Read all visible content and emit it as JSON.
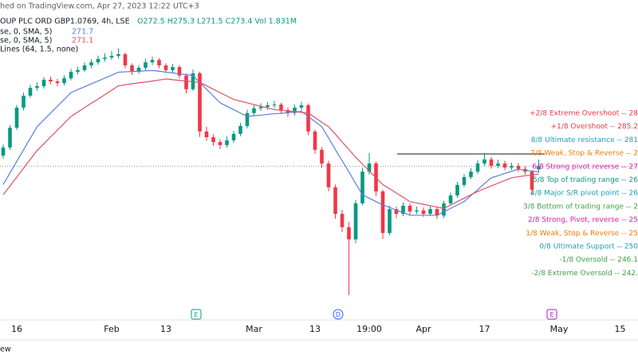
{
  "header": {
    "published": "hed on TradingView.com, Apr 27, 2023 12:22 UTC+3",
    "symbol": "OUP PLC ORD GBP1.0769, 4h, LSE",
    "ohlc": "O272.5 H275.3 L271.5 C273.4 Vol 1.831M",
    "indicators": [
      {
        "name": "se, 0, SMA, 5)",
        "value": "271.7",
        "color": "#5b7fe0"
      },
      {
        "name": "se, 0, SMA, 5)",
        "value": "271.1",
        "color": "#e0506a"
      },
      {
        "name": "Lines (64, 1.5, none)"
      }
    ]
  },
  "chart_data": {
    "type": "candlestick",
    "categories": [
      null,
      null,
      "16",
      null,
      null,
      null,
      null,
      null,
      null,
      null,
      null,
      null,
      null,
      null,
      null,
      null,
      "Feb",
      null,
      null,
      null,
      null,
      null,
      null,
      null,
      "13",
      null,
      null,
      null,
      null,
      null,
      null,
      null,
      null,
      null,
      null,
      null,
      null,
      "Mar",
      null,
      null,
      null,
      null,
      null,
      null,
      null,
      null,
      "13",
      null,
      null,
      null,
      null,
      null,
      null,
      null,
      "19:00",
      null,
      null,
      null,
      null,
      null,
      null,
      null,
      "Apr",
      null,
      null,
      null,
      null,
      null,
      null,
      null,
      null,
      "17",
      null,
      null,
      null,
      null,
      null,
      null,
      null,
      null,
      null,
      null,
      "May",
      null,
      null,
      null,
      null,
      null,
      null,
      null,
      null,
      "15",
      null
    ],
    "open": [
      276.5,
      278.9,
      284.7,
      290.6,
      294.1,
      296.4,
      296.9,
      298.8,
      298.3,
      297.8,
      299.2,
      301.1,
      301.6,
      303.0,
      303.9,
      304.9,
      305.3,
      305.8,
      306.3,
      303.0,
      301.1,
      302.3,
      303.9,
      304.6,
      303.0,
      301.6,
      302.5,
      300.0,
      296.0,
      300.7,
      283.6,
      281.9,
      280.5,
      279.6,
      281.0,
      282.9,
      285.2,
      289.0,
      290.4,
      290.8,
      291.3,
      291.5,
      289.9,
      289.0,
      290.6,
      291.3,
      283.6,
      278.2,
      274.2,
      267.2,
      259.4,
      255.5,
      251.9,
      262.5,
      271.8,
      274.2,
      266.0,
      253.8,
      260.8,
      259.4,
      261.8,
      260.1,
      260.4,
      259.4,
      260.8,
      258.9,
      262.5,
      264.8,
      267.9,
      270.2,
      271.8,
      274.2,
      275.4,
      273.5,
      274.2,
      273.0,
      273.5,
      272.6,
      271.8,
      272.5,
      null,
      null,
      null,
      null,
      null,
      null,
      null,
      null,
      null,
      null,
      null,
      null,
      null
    ],
    "high": [
      279.8,
      285.5,
      291.4,
      295.0,
      297.3,
      298.0,
      299.6,
      299.7,
      299.0,
      300.1,
      302.0,
      302.6,
      303.9,
      304.8,
      305.9,
      306.5,
      307.2,
      308.0,
      306.8,
      303.6,
      303.1,
      304.9,
      305.6,
      305.2,
      303.6,
      303.4,
      303.1,
      300.6,
      301.8,
      301.2,
      285.0,
      282.8,
      281.3,
      282.1,
      283.8,
      286.1,
      290.0,
      291.3,
      291.9,
      292.2,
      292.6,
      292.0,
      290.7,
      291.5,
      292.3,
      291.8,
      284.2,
      279.0,
      275.0,
      268.0,
      260.6,
      257.0,
      263.5,
      273.0,
      277.3,
      274.8,
      266.5,
      261.8,
      261.6,
      262.8,
      262.5,
      261.6,
      261.3,
      261.7,
      261.4,
      263.3,
      265.7,
      268.8,
      271.1,
      272.8,
      275.2,
      277.3,
      276.1,
      275.3,
      275.0,
      274.4,
      274.3,
      273.4,
      272.3,
      275.3,
      null,
      null,
      null,
      null,
      null,
      null,
      null,
      null,
      null,
      null,
      null,
      null,
      null
    ],
    "low": [
      275.6,
      278.2,
      284.0,
      289.8,
      293.5,
      295.6,
      296.2,
      297.5,
      296.9,
      297.1,
      298.6,
      300.4,
      301.0,
      302.2,
      303.2,
      304.1,
      304.6,
      305.0,
      302.1,
      300.2,
      300.5,
      301.6,
      303.1,
      302.2,
      300.8,
      300.9,
      299.1,
      294.8,
      295.5,
      282.0,
      280.8,
      279.4,
      278.4,
      278.9,
      280.3,
      282.2,
      284.5,
      288.2,
      289.6,
      290.0,
      290.5,
      289.0,
      287.9,
      288.3,
      289.8,
      282.5,
      277.0,
      272.9,
      266.0,
      258.0,
      254.1,
      235.6,
      250.8,
      261.9,
      270.9,
      264.6,
      252.0,
      253.1,
      258.1,
      258.7,
      259.2,
      259.4,
      258.5,
      258.8,
      257.9,
      258.2,
      261.9,
      264.1,
      267.2,
      269.6,
      271.1,
      273.5,
      272.7,
      272.8,
      272.2,
      272.3,
      271.7,
      270.9,
      264.8,
      271.5,
      null,
      null,
      null,
      null,
      null,
      null,
      null,
      null,
      null,
      null,
      null,
      null,
      null
    ],
    "close": [
      278.9,
      284.7,
      290.6,
      294.1,
      296.4,
      296.9,
      298.8,
      298.3,
      297.8,
      299.2,
      301.1,
      301.6,
      303.0,
      303.9,
      304.9,
      305.3,
      305.8,
      306.3,
      303.0,
      301.1,
      302.3,
      303.9,
      304.6,
      303.0,
      301.6,
      302.5,
      300.0,
      296.0,
      300.7,
      283.6,
      281.9,
      280.5,
      279.6,
      281.0,
      282.9,
      285.2,
      289.0,
      290.4,
      290.8,
      291.3,
      291.5,
      289.9,
      289.0,
      290.6,
      291.3,
      283.6,
      278.2,
      274.2,
      267.2,
      259.4,
      255.5,
      251.9,
      262.5,
      271.8,
      274.2,
      266.0,
      253.8,
      260.8,
      259.4,
      261.8,
      260.1,
      260.4,
      259.4,
      260.8,
      258.9,
      262.5,
      264.8,
      267.9,
      270.2,
      271.8,
      274.2,
      275.4,
      273.5,
      274.2,
      273.0,
      273.5,
      272.6,
      271.8,
      266.5,
      273.4,
      null,
      null,
      null,
      null,
      null,
      null,
      null,
      null,
      null,
      null,
      null,
      null,
      null
    ],
    "up_color": "#089981",
    "down_color": "#f23645",
    "series": [
      {
        "name": "se, 0, SMA, 5)",
        "color": "#5b7fe0",
        "values": [
          268.0,
          271.4,
          274.8,
          278.2,
          281.6,
          285.0,
          287.0,
          289.0,
          291.0,
          293.0,
          295.0,
          295.9,
          296.7,
          297.6,
          298.4,
          299.3,
          300.1,
          301.0,
          301.1,
          301.2,
          301.3,
          301.4,
          301.5,
          301.3,
          301.0,
          300.8,
          300.5,
          300.3,
          300.0,
          298.0,
          296.0,
          294.0,
          292.0,
          291.0,
          290.0,
          289.0,
          288.0,
          288.2,
          288.4,
          288.6,
          288.8,
          288.9,
          289.1,
          289.3,
          289.5,
          288.0,
          286.5,
          285.0,
          281.7,
          278.3,
          275.0,
          271.7,
          268.3,
          265.0,
          264.0,
          263.0,
          262.0,
          261.3,
          260.5,
          259.8,
          259.0,
          259.0,
          259.0,
          259.0,
          259.0,
          260.0,
          261.0,
          262.0,
          263.0,
          264.8,
          266.5,
          268.3,
          270.0,
          270.6,
          271.3,
          271.9,
          272.5,
          272.2,
          272.0,
          271.7,
          null,
          null,
          null,
          null,
          null,
          null,
          null,
          null,
          null,
          null,
          null,
          null,
          null
        ]
      },
      {
        "name": "se, 0, SMA, 5)",
        "color": "#e0506a",
        "values": [
          265.0,
          267.6,
          270.2,
          272.8,
          275.4,
          278.0,
          280.0,
          282.0,
          284.0,
          286.0,
          288.0,
          289.3,
          290.6,
          291.9,
          293.1,
          294.4,
          295.7,
          297.0,
          297.3,
          297.6,
          297.9,
          298.1,
          298.4,
          298.7,
          299.0,
          298.8,
          298.6,
          298.4,
          298.2,
          298.0,
          297.0,
          296.0,
          295.0,
          294.0,
          293.0,
          292.5,
          292.0,
          291.5,
          291.0,
          290.5,
          290.0,
          289.8,
          289.6,
          289.4,
          289.2,
          289.0,
          287.7,
          286.3,
          285.0,
          282.8,
          280.5,
          278.3,
          276.0,
          274.0,
          272.0,
          270.0,
          268.0,
          266.8,
          265.5,
          264.3,
          263.0,
          262.6,
          262.2,
          261.8,
          261.4,
          261.0,
          262.0,
          263.0,
          264.0,
          265.0,
          266.0,
          266.8,
          267.6,
          268.4,
          269.2,
          270.0,
          270.3,
          270.6,
          270.8,
          271.1,
          null,
          null,
          null,
          null,
          null,
          null,
          null,
          null,
          null,
          null,
          null,
          null,
          null
        ]
      }
    ],
    "ylim": [
      228.5,
      322.2
    ],
    "resistance_line": 277.0,
    "price_line": 273.4,
    "levels": [
      {
        "label": "+2/8 Extreme Overshoot -- 28",
        "color": "#f23645"
      },
      {
        "label": "+1/8 Overshoot -- 285.2",
        "color": "#f23645"
      },
      {
        "label": "8/8 Ultimate resistance -- 281",
        "color": "#1e9bb5"
      },
      {
        "label": "7/8 Weak, Stop & Reverse -- 2",
        "color": "#f57c00"
      },
      {
        "label": "6/8 Strong pivot reverse -- 27",
        "color": "#d81bb0"
      },
      {
        "label": "5/8 Top of trading range -- 26",
        "color": "#089981"
      },
      {
        "label": "4/8 Major S/R pivot point -- 26",
        "color": "#1e9bb5"
      },
      {
        "label": "3/8 Bottom of trading range -- 2",
        "color": "#43a047"
      },
      {
        "label": "2/8 Strong, Pivot, reverse -- 25",
        "color": "#d81bb0"
      },
      {
        "label": "1/8 Weak, Stop & Reverse -- 25",
        "color": "#f57c00"
      },
      {
        "label": "0/8 Ultimate Support -- 250",
        "color": "#1e9bb5"
      },
      {
        "label": "-1/8 Oversold -- 246.1",
        "color": "#43a047"
      },
      {
        "label": "-2/8 Extreme Oversold -- 242.",
        "color": "#43a047"
      }
    ],
    "events": [
      {
        "label": "E",
        "color": "#089981"
      },
      {
        "label": "D",
        "color": "#2962ff"
      },
      {
        "label": "E",
        "color": "#9c27b0"
      }
    ]
  },
  "footer": "ew"
}
